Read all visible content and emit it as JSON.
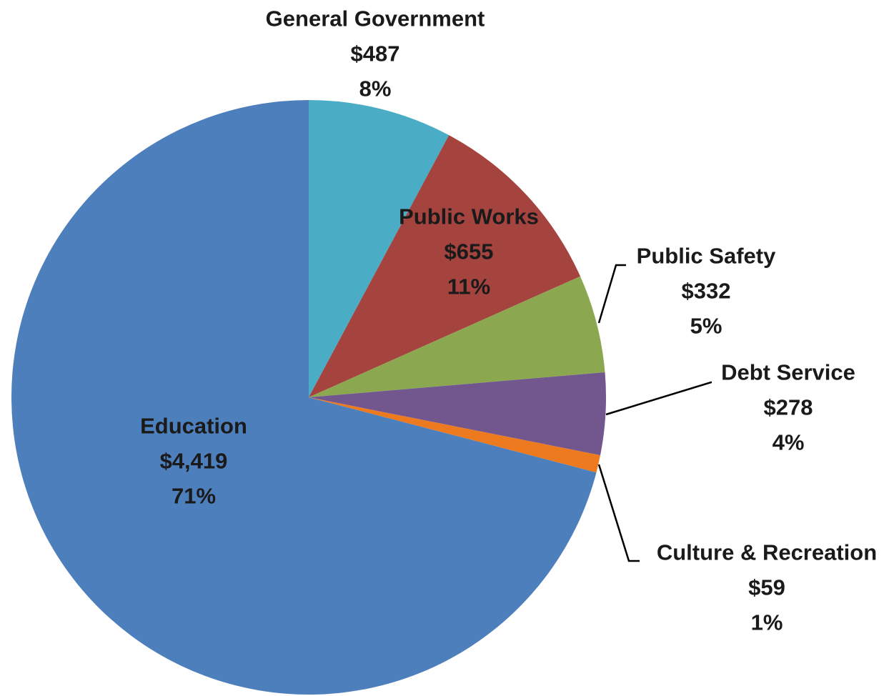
{
  "chart_data": {
    "type": "pie",
    "title": "",
    "unit": "$",
    "slices": [
      {
        "name": "General Government",
        "value": 487,
        "value_label": "$487",
        "percent_label": "8%",
        "color": "#4bacc6",
        "label_inside": false,
        "leader_line": false
      },
      {
        "name": "Public Works",
        "value": 655,
        "value_label": "$655",
        "percent_label": "11%",
        "color": "#a5433f",
        "label_inside": true,
        "leader_line": false
      },
      {
        "name": "Public Safety",
        "value": 332,
        "value_label": "$332",
        "percent_label": "5%",
        "color": "#8ba851",
        "label_inside": false,
        "leader_line": true
      },
      {
        "name": "Debt Service",
        "value": 278,
        "value_label": "$278",
        "percent_label": "4%",
        "color": "#72578f",
        "label_inside": false,
        "leader_line": true
      },
      {
        "name": "Culture & Recreation",
        "value": 59,
        "value_label": "$59",
        "percent_label": "1%",
        "color": "#ee7a1f",
        "label_inside": false,
        "leader_line": true
      },
      {
        "name": "Education",
        "value": 4419,
        "value_label": "$4,419",
        "percent_label": "71%",
        "color": "#4e7fbd",
        "label_inside": true,
        "leader_line": false
      }
    ],
    "start_angle": "12 o'clock",
    "direction": "clockwise",
    "legend": "none"
  }
}
